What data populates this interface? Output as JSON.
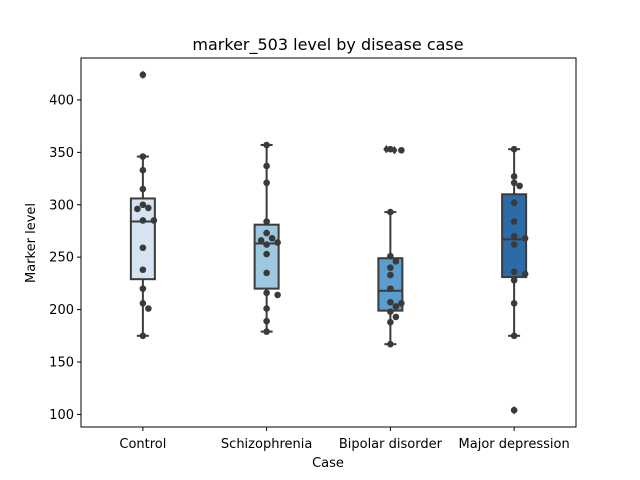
{
  "chart_data": {
    "type": "box",
    "title": "marker_503 level by disease case",
    "xlabel": "Case",
    "ylabel": "Marker level",
    "ylim": [
      88,
      440
    ],
    "yticks": [
      100,
      150,
      200,
      250,
      300,
      350,
      400
    ],
    "grid": false,
    "legend": "none",
    "categories": [
      "Control",
      "Schizophrenia",
      "Bipolar disorder",
      "Major depression"
    ],
    "colors": [
      "#d6e4f2",
      "#9ec7e0",
      "#5b9dcc",
      "#2b6ca8"
    ],
    "boxes": [
      {
        "q1": 229,
        "median": 284,
        "q3": 306,
        "whisker_low": 175,
        "whisker_high": 346,
        "outliers": [
          424
        ]
      },
      {
        "q1": 220,
        "median": 263,
        "q3": 281,
        "whisker_low": 179,
        "whisker_high": 357,
        "outliers": []
      },
      {
        "q1": 199,
        "median": 218,
        "q3": 249,
        "whisker_low": 167,
        "whisker_high": 293,
        "outliers": [
          353,
          352
        ]
      },
      {
        "q1": 231,
        "median": 267,
        "q3": 310,
        "whisker_low": 175,
        "whisker_high": 353,
        "outliers": [
          104
        ]
      }
    ],
    "points": [
      [
        424,
        346,
        333,
        315,
        300,
        297,
        296,
        285,
        285,
        259,
        238,
        220,
        206,
        201,
        175
      ],
      [
        357,
        337,
        321,
        284,
        273,
        268,
        266,
        264,
        262,
        253,
        235,
        216,
        214,
        201,
        189,
        179
      ],
      [
        353,
        352,
        293,
        251,
        246,
        240,
        233,
        220,
        207,
        206,
        203,
        198,
        193,
        188,
        167
      ],
      [
        353,
        327,
        321,
        318,
        302,
        284,
        270,
        268,
        262,
        236,
        234,
        228,
        206,
        175,
        104
      ]
    ]
  }
}
